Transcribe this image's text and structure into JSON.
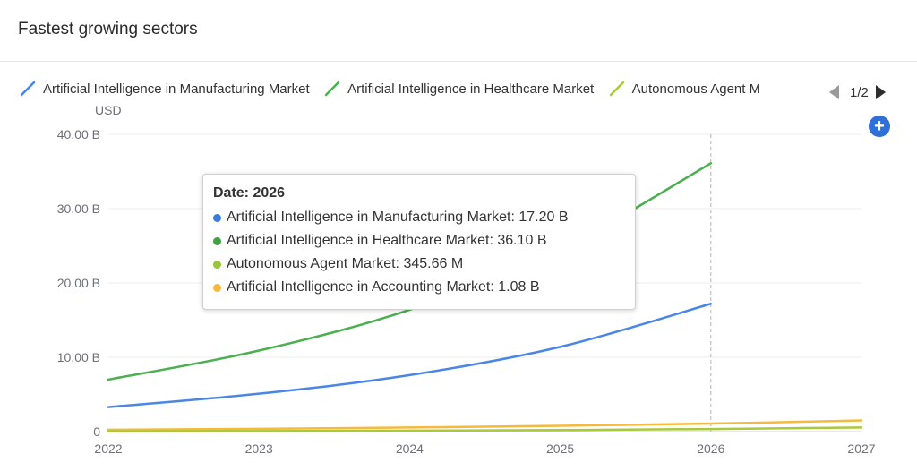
{
  "header": {
    "title": "Fastest growing sectors"
  },
  "legend": {
    "page_indicator": "1/2",
    "items": [
      {
        "label": "Artificial Intelligence in Manufacturing Market",
        "color": "#4a86e8"
      },
      {
        "label": "Artificial Intelligence in Healthcare Market",
        "color": "#4caf50"
      },
      {
        "label": "Autonomous Agent M",
        "color": "#a8c93a"
      }
    ]
  },
  "tooltip": {
    "title": "Date: 2026",
    "rows": [
      {
        "text": "Artificial Intelligence in Manufacturing Market: 17.20 B",
        "color": "#3b7bdc"
      },
      {
        "text": "Artificial Intelligence in Healthcare Market: 36.10 B",
        "color": "#43a047"
      },
      {
        "text": "Autonomous Agent Market: 345.66 M",
        "color": "#9bc53d"
      },
      {
        "text": "Artificial Intelligence in Accounting Market: 1.08 B",
        "color": "#f6b93b"
      }
    ]
  },
  "chart_data": {
    "type": "line",
    "ylabel": "USD",
    "xlim": [
      2022,
      2027
    ],
    "ylim": [
      0,
      40
    ],
    "x_ticks": [
      "2022",
      "2023",
      "2024",
      "2025",
      "2026",
      "2027"
    ],
    "y_ticks": [
      "0",
      "10.00 B",
      "20.00 B",
      "30.00 B",
      "40.00 B"
    ],
    "grid": true,
    "legend_position": "top",
    "hover_x": 2026,
    "series": [
      {
        "name": "Artificial Intelligence in Manufacturing Market",
        "color": "#4a86e8",
        "x": [
          2022,
          2023,
          2024,
          2025,
          2026
        ],
        "y": [
          3.3,
          5.1,
          7.6,
          11.4,
          17.2
        ]
      },
      {
        "name": "Artificial Intelligence in Healthcare Market",
        "color": "#4caf50",
        "x": [
          2022,
          2023,
          2024,
          2025,
          2026
        ],
        "y": [
          7.0,
          10.9,
          16.4,
          24.5,
          36.1
        ]
      },
      {
        "name": "Autonomous Agent Market",
        "color": "#a8c93a",
        "x": [
          2022,
          2023,
          2024,
          2025,
          2026,
          2027
        ],
        "y": [
          0.05,
          0.08,
          0.13,
          0.21,
          0.35,
          0.55
        ]
      },
      {
        "name": "Artificial Intelligence in Accounting Market",
        "color": "#f6b93b",
        "x": [
          2022,
          2023,
          2024,
          2025,
          2026,
          2027
        ],
        "y": [
          0.25,
          0.38,
          0.55,
          0.78,
          1.08,
          1.5
        ]
      }
    ]
  }
}
